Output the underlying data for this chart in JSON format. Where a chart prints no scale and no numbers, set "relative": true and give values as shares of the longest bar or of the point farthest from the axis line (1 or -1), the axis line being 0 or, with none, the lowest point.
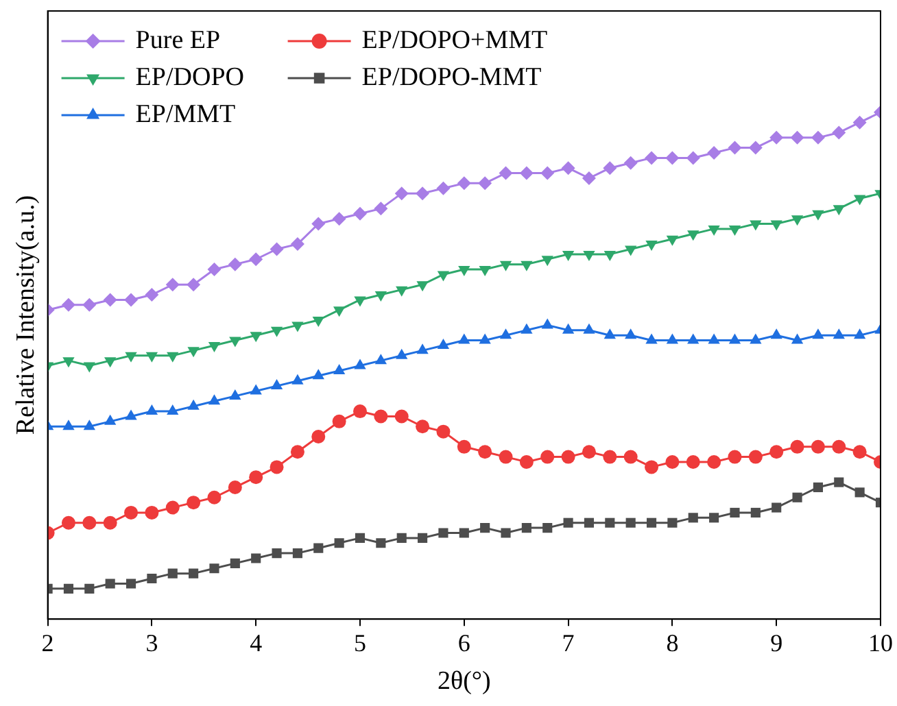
{
  "chart_data": {
    "type": "line",
    "xlabel": "2θ(°)",
    "ylabel": "Relative Intensity(a.u.)",
    "relative": true,
    "tick_labels": "x",
    "legend": "top left",
    "grid": false,
    "xlim": [
      2,
      10
    ],
    "xticks": [
      2,
      3,
      4,
      5,
      6,
      7,
      8,
      9,
      10
    ],
    "x": [
      2,
      2.2,
      2.4,
      2.6,
      2.8,
      3,
      3.2,
      3.4,
      3.6,
      3.8,
      4,
      4.2,
      4.4,
      4.6,
      4.8,
      5,
      5.2,
      5.4,
      5.6,
      5.8,
      6,
      6.2,
      6.4,
      6.6,
      6.8,
      7,
      7.2,
      7.4,
      7.6,
      7.8,
      8,
      8.2,
      8.4,
      8.6,
      8.8,
      9,
      9.2,
      9.4,
      9.6,
      9.8,
      10
    ],
    "series": [
      {
        "name": "Pure EP",
        "color": "#a87de6",
        "marker": "diamond",
        "values": [
          0.61,
          0.62,
          0.62,
          0.63,
          0.63,
          0.64,
          0.66,
          0.66,
          0.69,
          0.7,
          0.71,
          0.73,
          0.74,
          0.78,
          0.79,
          0.8,
          0.81,
          0.84,
          0.84,
          0.85,
          0.86,
          0.86,
          0.88,
          0.88,
          0.88,
          0.89,
          0.87,
          0.89,
          0.9,
          0.91,
          0.91,
          0.91,
          0.92,
          0.93,
          0.93,
          0.95,
          0.95,
          0.95,
          0.96,
          0.98,
          1
        ]
      },
      {
        "name": "EP/DOPO",
        "color": "#2ea86b",
        "marker": "triangle-down",
        "values": [
          0.5,
          0.51,
          0.5,
          0.51,
          0.52,
          0.52,
          0.52,
          0.53,
          0.54,
          0.55,
          0.56,
          0.57,
          0.58,
          0.59,
          0.61,
          0.63,
          0.64,
          0.65,
          0.66,
          0.68,
          0.69,
          0.69,
          0.7,
          0.7,
          0.71,
          0.72,
          0.72,
          0.72,
          0.73,
          0.74,
          0.75,
          0.76,
          0.77,
          0.77,
          0.78,
          0.78,
          0.79,
          0.8,
          0.81,
          0.83,
          0.84
        ]
      },
      {
        "name": "EP/MMT",
        "color": "#1f6fe0",
        "marker": "triangle",
        "values": [
          0.38,
          0.38,
          0.38,
          0.39,
          0.4,
          0.41,
          0.41,
          0.42,
          0.43,
          0.44,
          0.45,
          0.46,
          0.47,
          0.48,
          0.49,
          0.5,
          0.51,
          0.52,
          0.53,
          0.54,
          0.55,
          0.55,
          0.56,
          0.57,
          0.58,
          0.57,
          0.57,
          0.56,
          0.56,
          0.55,
          0.55,
          0.55,
          0.55,
          0.55,
          0.55,
          0.56,
          0.55,
          0.56,
          0.56,
          0.56,
          0.57
        ]
      },
      {
        "name": "EP/DOPO+MMT",
        "color": "#ee3b3b",
        "marker": "circle",
        "values": [
          0.17,
          0.19,
          0.19,
          0.19,
          0.21,
          0.21,
          0.22,
          0.23,
          0.24,
          0.26,
          0.28,
          0.3,
          0.33,
          0.36,
          0.39,
          0.41,
          0.4,
          0.4,
          0.38,
          0.37,
          0.34,
          0.33,
          0.32,
          0.31,
          0.32,
          0.32,
          0.33,
          0.32,
          0.32,
          0.3,
          0.31,
          0.31,
          0.31,
          0.32,
          0.32,
          0.33,
          0.34,
          0.34,
          0.34,
          0.33,
          0.31
        ]
      },
      {
        "name": "EP/DOPO-MMT",
        "color": "#4d4d4d",
        "marker": "square",
        "values": [
          0.06,
          0.06,
          0.06,
          0.07,
          0.07,
          0.08,
          0.09,
          0.09,
          0.1,
          0.11,
          0.12,
          0.13,
          0.13,
          0.14,
          0.15,
          0.16,
          0.15,
          0.16,
          0.16,
          0.17,
          0.17,
          0.18,
          0.17,
          0.18,
          0.18,
          0.19,
          0.19,
          0.19,
          0.19,
          0.19,
          0.19,
          0.2,
          0.2,
          0.21,
          0.21,
          0.22,
          0.24,
          0.26,
          0.27,
          0.25,
          0.23
        ]
      }
    ]
  }
}
